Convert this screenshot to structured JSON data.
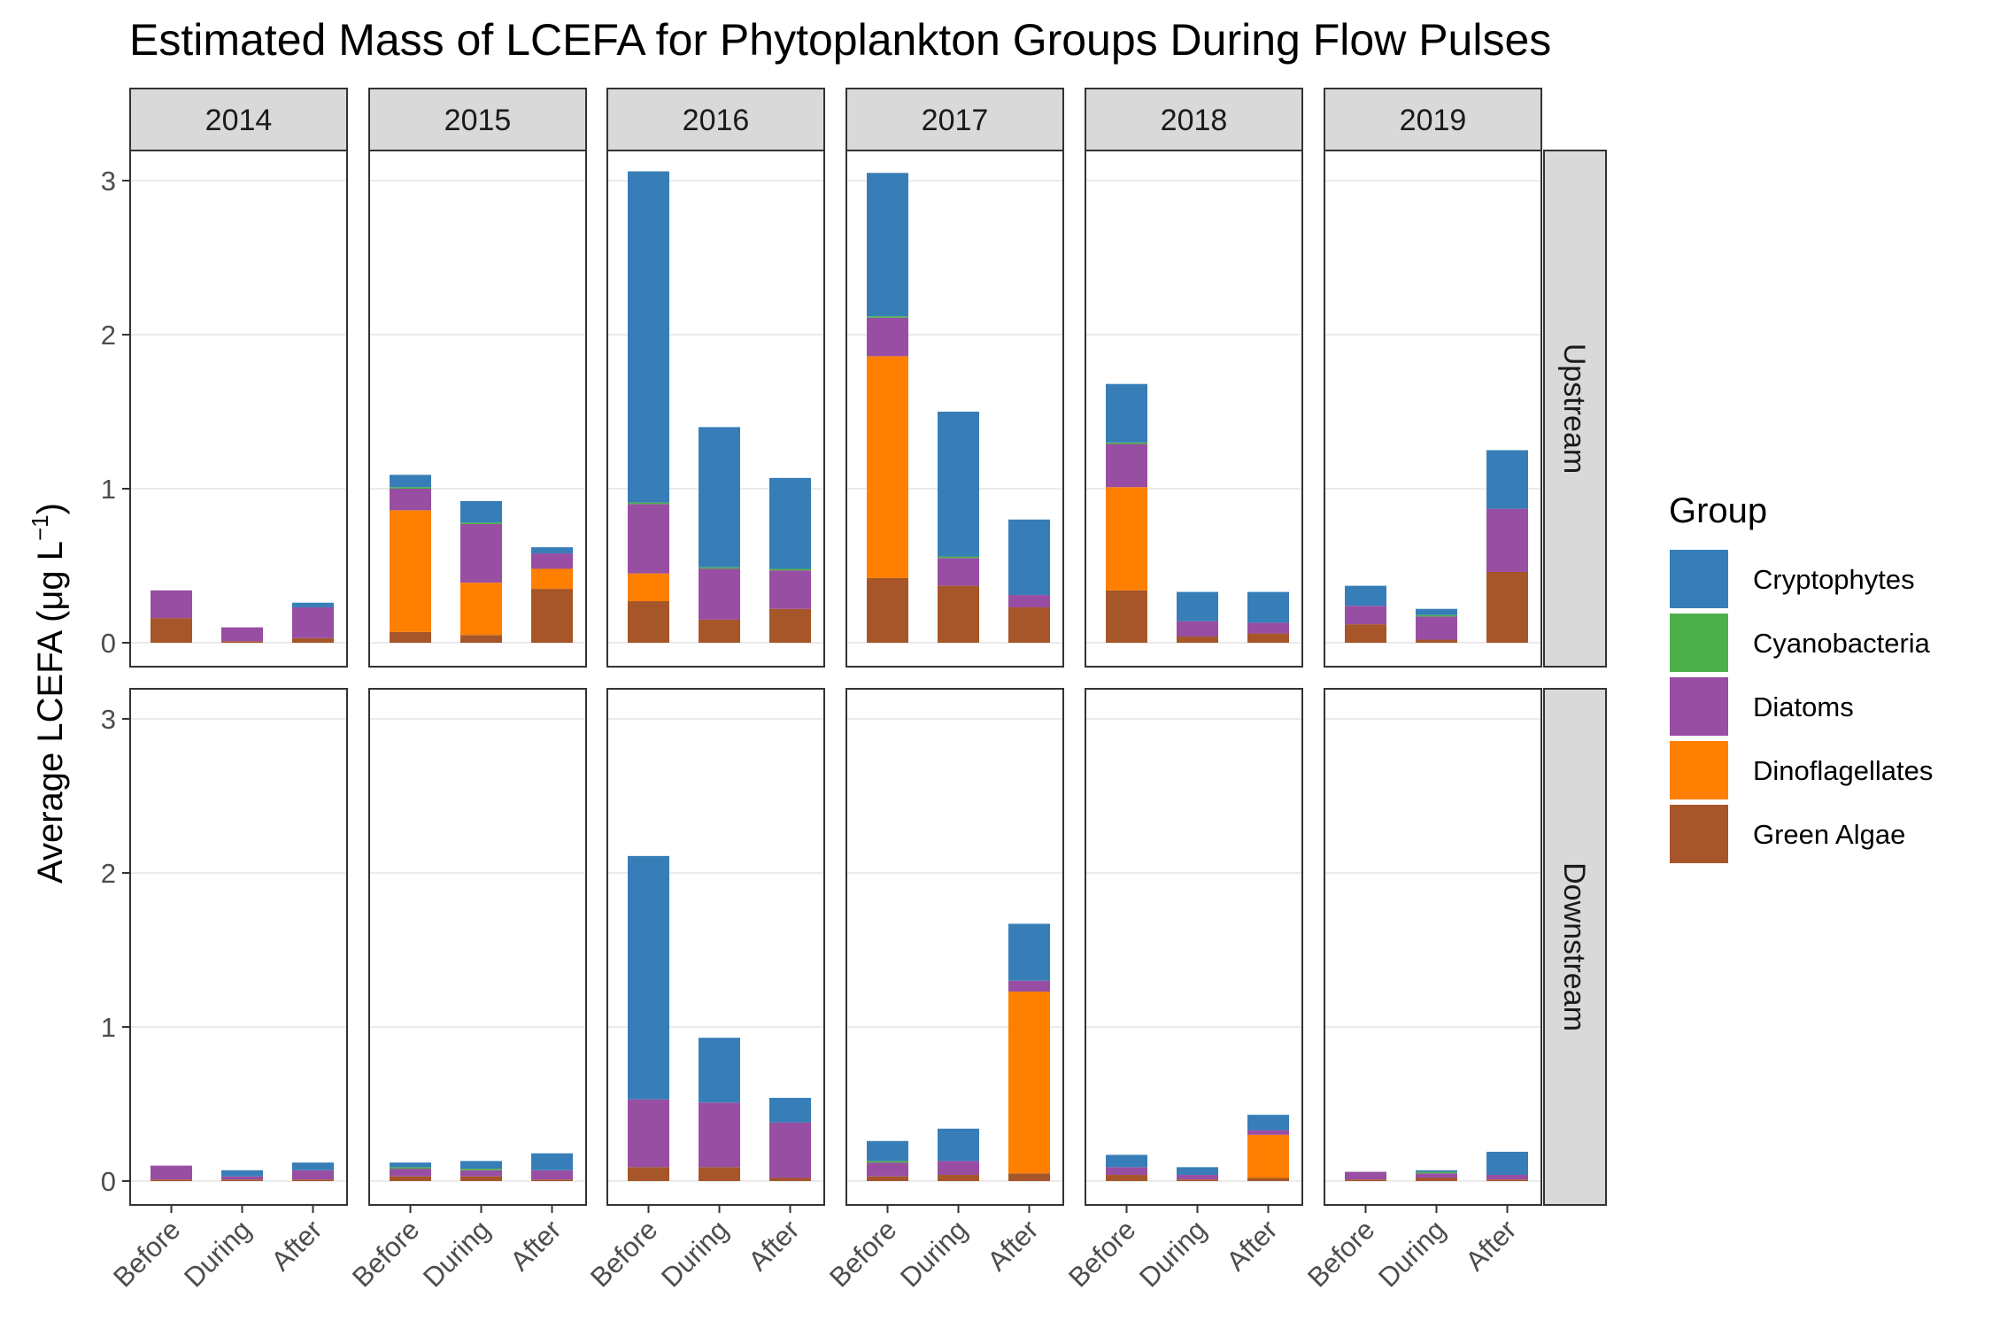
{
  "chart_data": {
    "type": "bar",
    "stacked": true,
    "title": "Estimated Mass of LCEFA for Phytoplankton Groups During Flow Pulses",
    "ylabel": "Average LCEFA (μg L",
    "ylabel_superscript": "−1",
    "ylabel_close": ")",
    "ylim": [
      0,
      3.2
    ],
    "yticks": [
      "0",
      "1",
      "2",
      "3"
    ],
    "categories": [
      "Before",
      "During",
      "After"
    ],
    "facet_columns": [
      "2014",
      "2015",
      "2016",
      "2017",
      "2018",
      "2019"
    ],
    "facet_rows": [
      "Upstream",
      "Downstream"
    ],
    "grid": true,
    "legend": {
      "title": "Group",
      "position": "right",
      "entries": [
        {
          "name": "Cryptophytes",
          "color": "#377EB8"
        },
        {
          "name": "Cyanobacteria",
          "color": "#4DAF4A"
        },
        {
          "name": "Diatoms",
          "color": "#984EA3"
        },
        {
          "name": "Dinoflagellates",
          "color": "#FF7F00"
        },
        {
          "name": "Green Algae",
          "color": "#A65628"
        }
      ]
    },
    "stack_order": [
      "Green Algae",
      "Dinoflagellates",
      "Diatoms",
      "Cyanobacteria",
      "Cryptophytes"
    ],
    "panels": [
      {
        "row": "Upstream",
        "year": "2014",
        "bars": [
          {
            "Green Algae": 0.16,
            "Dinoflagellates": 0,
            "Diatoms": 0.18,
            "Cyanobacteria": 0,
            "Cryptophytes": 0
          },
          {
            "Green Algae": 0.01,
            "Dinoflagellates": 0,
            "Diatoms": 0.09,
            "Cyanobacteria": 0,
            "Cryptophytes": 0
          },
          {
            "Green Algae": 0.03,
            "Dinoflagellates": 0,
            "Diatoms": 0.2,
            "Cyanobacteria": 0,
            "Cryptophytes": 0.03
          }
        ]
      },
      {
        "row": "Upstream",
        "year": "2015",
        "bars": [
          {
            "Green Algae": 0.07,
            "Dinoflagellates": 0.79,
            "Diatoms": 0.14,
            "Cyanobacteria": 0.01,
            "Cryptophytes": 0.08
          },
          {
            "Green Algae": 0.05,
            "Dinoflagellates": 0.34,
            "Diatoms": 0.38,
            "Cyanobacteria": 0.01,
            "Cryptophytes": 0.14
          },
          {
            "Green Algae": 0.35,
            "Dinoflagellates": 0.13,
            "Diatoms": 0.1,
            "Cyanobacteria": 0,
            "Cryptophytes": 0.04
          }
        ]
      },
      {
        "row": "Upstream",
        "year": "2016",
        "bars": [
          {
            "Green Algae": 0.27,
            "Dinoflagellates": 0.18,
            "Diatoms": 0.45,
            "Cyanobacteria": 0.01,
            "Cryptophytes": 2.15
          },
          {
            "Green Algae": 0.15,
            "Dinoflagellates": 0,
            "Diatoms": 0.33,
            "Cyanobacteria": 0.01,
            "Cryptophytes": 0.91
          },
          {
            "Green Algae": 0.22,
            "Dinoflagellates": 0,
            "Diatoms": 0.25,
            "Cyanobacteria": 0.01,
            "Cryptophytes": 0.59
          }
        ]
      },
      {
        "row": "Upstream",
        "year": "2017",
        "bars": [
          {
            "Green Algae": 0.42,
            "Dinoflagellates": 1.44,
            "Diatoms": 0.25,
            "Cyanobacteria": 0.01,
            "Cryptophytes": 0.93
          },
          {
            "Green Algae": 0.37,
            "Dinoflagellates": 0,
            "Diatoms": 0.18,
            "Cyanobacteria": 0.01,
            "Cryptophytes": 0.94
          },
          {
            "Green Algae": 0.23,
            "Dinoflagellates": 0,
            "Diatoms": 0.08,
            "Cyanobacteria": 0,
            "Cryptophytes": 0.49
          }
        ]
      },
      {
        "row": "Upstream",
        "year": "2018",
        "bars": [
          {
            "Green Algae": 0.34,
            "Dinoflagellates": 0.67,
            "Diatoms": 0.28,
            "Cyanobacteria": 0.01,
            "Cryptophytes": 0.38
          },
          {
            "Green Algae": 0.04,
            "Dinoflagellates": 0,
            "Diatoms": 0.1,
            "Cyanobacteria": 0,
            "Cryptophytes": 0.19
          },
          {
            "Green Algae": 0.06,
            "Dinoflagellates": 0,
            "Diatoms": 0.07,
            "Cyanobacteria": 0,
            "Cryptophytes": 0.2
          }
        ]
      },
      {
        "row": "Upstream",
        "year": "2019",
        "bars": [
          {
            "Green Algae": 0.12,
            "Dinoflagellates": 0,
            "Diatoms": 0.12,
            "Cyanobacteria": 0,
            "Cryptophytes": 0.13
          },
          {
            "Green Algae": 0.02,
            "Dinoflagellates": 0,
            "Diatoms": 0.15,
            "Cyanobacteria": 0.01,
            "Cryptophytes": 0.04
          },
          {
            "Green Algae": 0.46,
            "Dinoflagellates": 0,
            "Diatoms": 0.41,
            "Cyanobacteria": 0,
            "Cryptophytes": 0.38
          }
        ]
      },
      {
        "row": "Downstream",
        "year": "2014",
        "bars": [
          {
            "Green Algae": 0.01,
            "Dinoflagellates": 0,
            "Diatoms": 0.09,
            "Cyanobacteria": 0,
            "Cryptophytes": 0
          },
          {
            "Green Algae": 0.01,
            "Dinoflagellates": 0,
            "Diatoms": 0.02,
            "Cyanobacteria": 0,
            "Cryptophytes": 0.04
          },
          {
            "Green Algae": 0.01,
            "Dinoflagellates": 0,
            "Diatoms": 0.06,
            "Cyanobacteria": 0,
            "Cryptophytes": 0.05
          }
        ]
      },
      {
        "row": "Downstream",
        "year": "2015",
        "bars": [
          {
            "Green Algae": 0.03,
            "Dinoflagellates": 0,
            "Diatoms": 0.05,
            "Cyanobacteria": 0.01,
            "Cryptophytes": 0.03
          },
          {
            "Green Algae": 0.03,
            "Dinoflagellates": 0,
            "Diatoms": 0.04,
            "Cyanobacteria": 0.01,
            "Cryptophytes": 0.05
          },
          {
            "Green Algae": 0.01,
            "Dinoflagellates": 0,
            "Diatoms": 0.06,
            "Cyanobacteria": 0,
            "Cryptophytes": 0.11
          }
        ]
      },
      {
        "row": "Downstream",
        "year": "2016",
        "bars": [
          {
            "Green Algae": 0.09,
            "Dinoflagellates": 0,
            "Diatoms": 0.44,
            "Cyanobacteria": 0,
            "Cryptophytes": 1.58
          },
          {
            "Green Algae": 0.09,
            "Dinoflagellates": 0,
            "Diatoms": 0.42,
            "Cyanobacteria": 0,
            "Cryptophytes": 0.42
          },
          {
            "Green Algae": 0.02,
            "Dinoflagellates": 0,
            "Diatoms": 0.36,
            "Cyanobacteria": 0,
            "Cryptophytes": 0.16
          }
        ]
      },
      {
        "row": "Downstream",
        "year": "2017",
        "bars": [
          {
            "Green Algae": 0.03,
            "Dinoflagellates": 0,
            "Diatoms": 0.09,
            "Cyanobacteria": 0.01,
            "Cryptophytes": 0.13
          },
          {
            "Green Algae": 0.04,
            "Dinoflagellates": 0,
            "Diatoms": 0.09,
            "Cyanobacteria": 0,
            "Cryptophytes": 0.21
          },
          {
            "Green Algae": 0.05,
            "Dinoflagellates": 1.18,
            "Diatoms": 0.07,
            "Cyanobacteria": 0,
            "Cryptophytes": 0.37
          }
        ]
      },
      {
        "row": "Downstream",
        "year": "2018",
        "bars": [
          {
            "Green Algae": 0.04,
            "Dinoflagellates": 0,
            "Diatoms": 0.05,
            "Cyanobacteria": 0,
            "Cryptophytes": 0.08
          },
          {
            "Green Algae": 0.01,
            "Dinoflagellates": 0,
            "Diatoms": 0.03,
            "Cyanobacteria": 0,
            "Cryptophytes": 0.05
          },
          {
            "Green Algae": 0.02,
            "Dinoflagellates": 0.28,
            "Diatoms": 0.03,
            "Cyanobacteria": 0,
            "Cryptophytes": 0.1
          }
        ]
      },
      {
        "row": "Downstream",
        "year": "2019",
        "bars": [
          {
            "Green Algae": 0.01,
            "Dinoflagellates": 0,
            "Diatoms": 0.05,
            "Cyanobacteria": 0,
            "Cryptophytes": 0
          },
          {
            "Green Algae": 0.02,
            "Dinoflagellates": 0,
            "Diatoms": 0.03,
            "Cyanobacteria": 0.01,
            "Cryptophytes": 0.01
          },
          {
            "Green Algae": 0.01,
            "Dinoflagellates": 0,
            "Diatoms": 0.03,
            "Cyanobacteria": 0,
            "Cryptophytes": 0.15
          }
        ]
      }
    ]
  }
}
